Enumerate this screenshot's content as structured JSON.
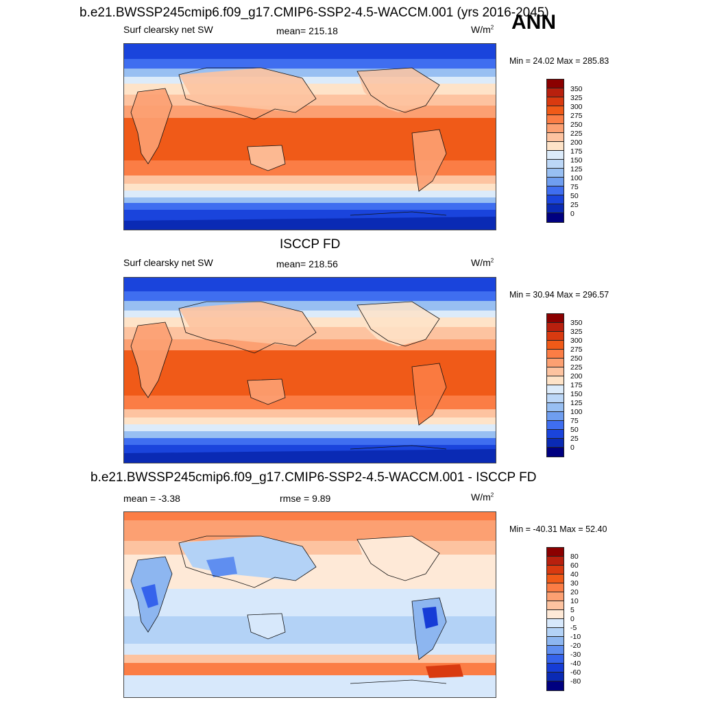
{
  "season": "ANN",
  "panels": [
    {
      "title": "b.e21.BWSSP245cmip6.f09_g17.CMIP6-SSP2-4.5-WACCM.001 (yrs 2016-2045)",
      "left_label": "Surf clearsky net SW",
      "center_label": "mean= 215.18",
      "units": "W/m",
      "units_sup": "2",
      "minmax": "Min =  24.02 Max = 285.83",
      "colorbar_labels": [
        "350",
        "325",
        "300",
        "275",
        "250",
        "225",
        "200",
        "175",
        "150",
        "125",
        "100",
        "75",
        "50",
        "25",
        "0"
      ]
    },
    {
      "title": "ISCCP FD",
      "left_label": "Surf clearsky net SW",
      "center_label": "mean= 218.56",
      "units": "W/m",
      "units_sup": "2",
      "minmax": "Min =  30.94 Max = 296.57",
      "colorbar_labels": [
        "350",
        "325",
        "300",
        "275",
        "250",
        "225",
        "200",
        "175",
        "150",
        "125",
        "100",
        "75",
        "50",
        "25",
        "0"
      ]
    },
    {
      "title": "b.e21.BWSSP245cmip6.f09_g17.CMIP6-SSP2-4.5-WACCM.001 - ISCCP FD",
      "left_label": "mean =  -3.38",
      "center_label": "rmse =   9.89",
      "units": "W/m",
      "units_sup": "2",
      "minmax": "Min = -40.31 Max =  52.40",
      "colorbar_labels": [
        "80",
        "60",
        "40",
        "30",
        "20",
        "10",
        "5",
        "0",
        "-5",
        "-10",
        "-20",
        "-30",
        "-40",
        "-60",
        "-80"
      ]
    }
  ],
  "colors": {
    "abs_scale": [
      "#8b0000",
      "#b8200e",
      "#d93a10",
      "#f05a18",
      "#fb7d45",
      "#fca072",
      "#fdc3a0",
      "#fee3c8",
      "#dcebfa",
      "#bcd7f7",
      "#98bff2",
      "#6f9ef0",
      "#3f6ef0",
      "#1a44dc",
      "#0a2ab4",
      "#000080"
    ],
    "diff_scale": [
      "#8b0000",
      "#b8200e",
      "#d93a10",
      "#f05a18",
      "#fb7d45",
      "#fca072",
      "#fdc3a0",
      "#fee9d7",
      "#d7e8fb",
      "#b3d2f6",
      "#8db6f0",
      "#5f8ef0",
      "#3563ec",
      "#163cd6",
      "#0a2ab4",
      "#000080"
    ]
  }
}
